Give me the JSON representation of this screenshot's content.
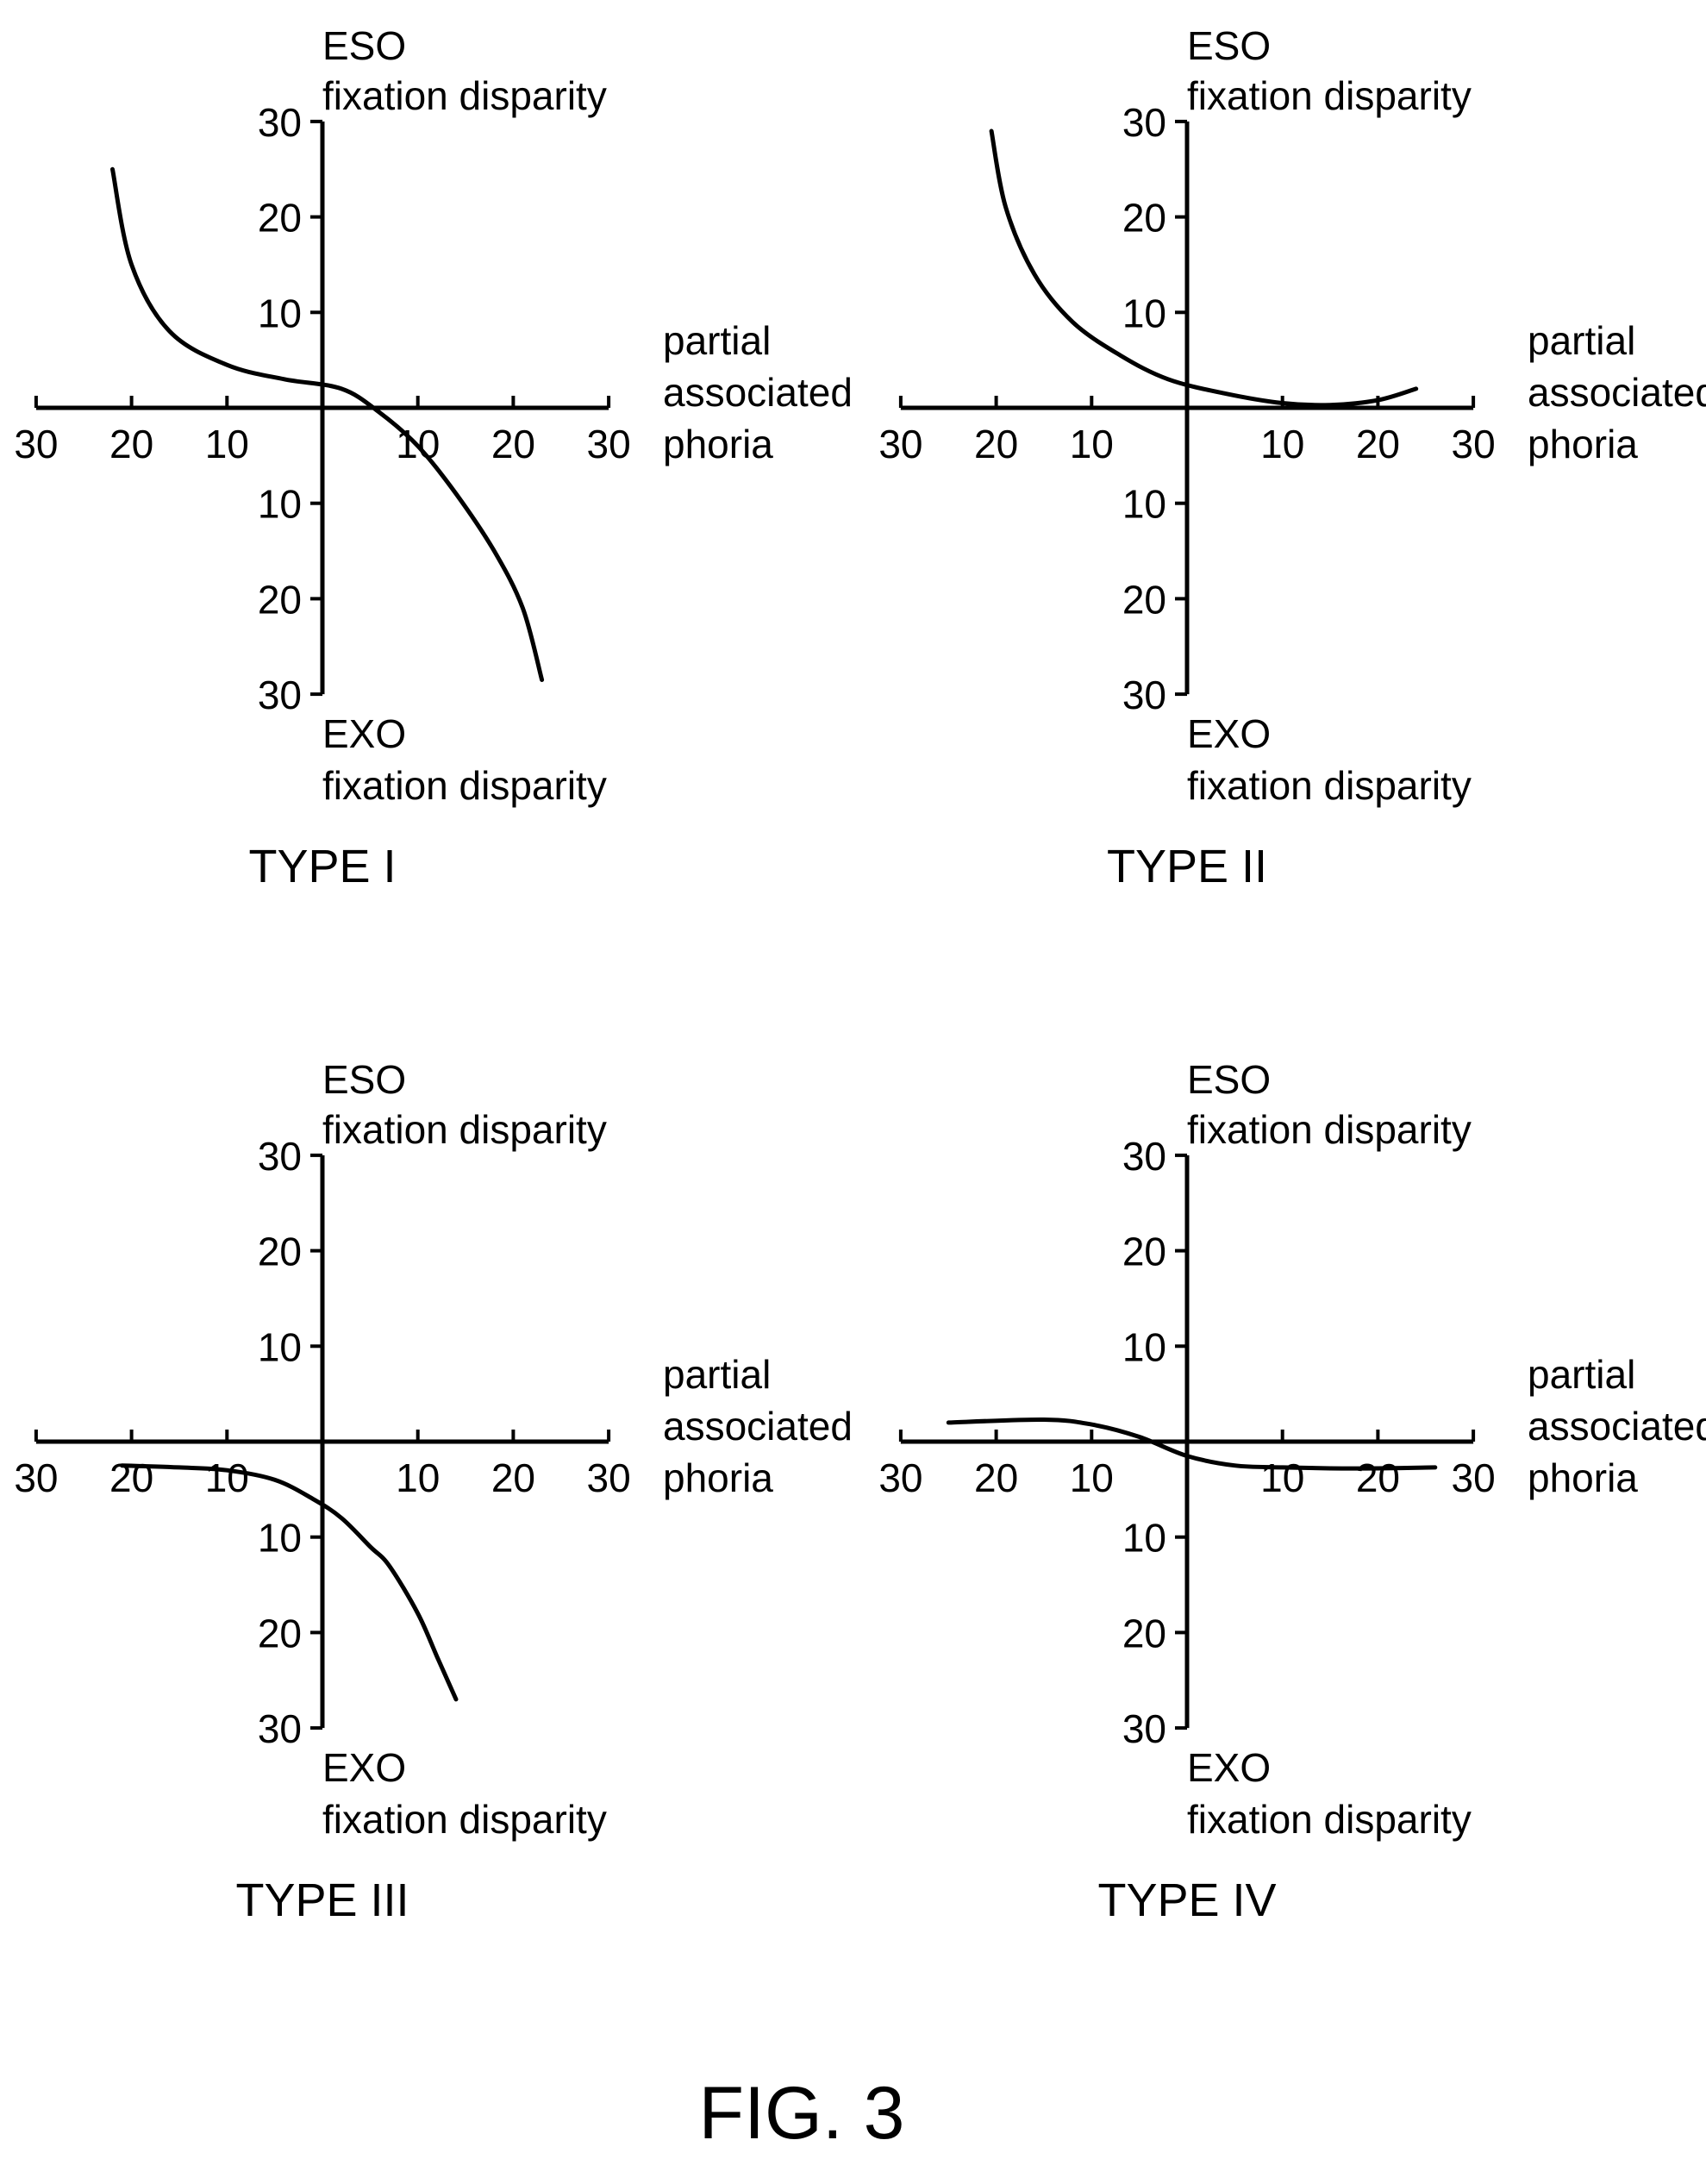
{
  "figure_label": "FIG. 3",
  "chart_data": [
    {
      "type": "line",
      "title": "TYPE I",
      "xlabel": [
        "partial",
        "associated",
        "phoria"
      ],
      "ylabel_top": [
        "ESO",
        "fixation disparity"
      ],
      "ylabel_bottom": [
        "EXO",
        "fixation disparity"
      ],
      "xlim": [
        -30,
        30
      ],
      "ylim": [
        -30,
        30
      ],
      "x_ticks": [
        -30,
        -20,
        -10,
        10,
        20,
        30
      ],
      "x_tick_labels": [
        "30",
        "20",
        "10",
        "10",
        "20",
        "30"
      ],
      "y_ticks": [
        30,
        20,
        10,
        -10,
        -20,
        -30
      ],
      "y_tick_labels": [
        "30",
        "20",
        "10",
        "10",
        "20",
        "30"
      ],
      "grid": false,
      "series": [
        {
          "x": [
            -22,
            -20,
            -16,
            -10,
            -4,
            2,
            6,
            10,
            14,
            18,
            21,
            23
          ],
          "y": [
            25,
            15,
            8,
            4.5,
            3,
            2,
            -0.5,
            -4,
            -9,
            -15,
            -21,
            -28.5
          ]
        }
      ]
    },
    {
      "type": "line",
      "title": "TYPE II",
      "xlabel": [
        "partial",
        "associated",
        "phoria"
      ],
      "ylabel_top": [
        "ESO",
        "fixation disparity"
      ],
      "ylabel_bottom": [
        "EXO",
        "fixation disparity"
      ],
      "xlim": [
        -30,
        30
      ],
      "ylim": [
        -30,
        30
      ],
      "x_ticks": [
        -30,
        -20,
        -10,
        10,
        20,
        30
      ],
      "x_tick_labels": [
        "30",
        "20",
        "10",
        "10",
        "20",
        "30"
      ],
      "y_ticks": [
        30,
        20,
        10,
        -10,
        -20,
        -30
      ],
      "y_tick_labels": [
        "30",
        "20",
        "10",
        "10",
        "20",
        "30"
      ],
      "grid": false,
      "series": [
        {
          "x": [
            -20.5,
            -19,
            -16,
            -12,
            -7,
            -2,
            4,
            10,
            15,
            20,
            24
          ],
          "y": [
            29,
            21,
            14,
            9,
            5.5,
            3,
            1.5,
            0.5,
            0.3,
            0.8,
            2
          ]
        }
      ]
    },
    {
      "type": "line",
      "title": "TYPE III",
      "xlabel": [
        "partial",
        "associated",
        "phoria"
      ],
      "ylabel_top": [
        "ESO",
        "fixation disparity"
      ],
      "ylabel_bottom": [
        "EXO",
        "fixation disparity"
      ],
      "xlim": [
        -30,
        30
      ],
      "ylim": [
        -30,
        30
      ],
      "x_ticks": [
        -30,
        -20,
        -10,
        10,
        20,
        30
      ],
      "x_tick_labels": [
        "30",
        "20",
        "10",
        "10",
        "20",
        "30"
      ],
      "y_ticks": [
        30,
        20,
        10,
        -10,
        -20,
        -30
      ],
      "y_tick_labels": [
        "30",
        "20",
        "10",
        "10",
        "20",
        "30"
      ],
      "grid": false,
      "series": [
        {
          "x": [
            -21,
            -15,
            -10,
            -5,
            -1,
            2,
            5,
            7,
            10,
            12,
            14
          ],
          "y": [
            -2.5,
            -2.7,
            -3,
            -4,
            -6,
            -8,
            -11,
            -13,
            -18,
            -22.5,
            -27
          ]
        }
      ]
    },
    {
      "type": "line",
      "title": "TYPE IV",
      "xlabel": [
        "partial",
        "associated",
        "phoria"
      ],
      "ylabel_top": [
        "ESO",
        "fixation disparity"
      ],
      "ylabel_bottom": [
        "EXO",
        "fixation disparity"
      ],
      "xlim": [
        -30,
        30
      ],
      "ylim": [
        -30,
        30
      ],
      "x_ticks": [
        -30,
        -20,
        -10,
        10,
        20,
        30
      ],
      "x_tick_labels": [
        "30",
        "20",
        "10",
        "10",
        "20",
        "30"
      ],
      "y_ticks": [
        30,
        20,
        10,
        -10,
        -20,
        -30
      ],
      "y_tick_labels": [
        "30",
        "20",
        "10",
        "10",
        "20",
        "30"
      ],
      "grid": false,
      "series": [
        {
          "x": [
            -25,
            -15,
            -10,
            -5,
            0,
            5,
            10,
            15,
            20,
            26
          ],
          "y": [
            2,
            2.3,
            1.8,
            0.5,
            -1.5,
            -2.5,
            -2.7,
            -2.8,
            -2.8,
            -2.7
          ]
        }
      ]
    }
  ]
}
